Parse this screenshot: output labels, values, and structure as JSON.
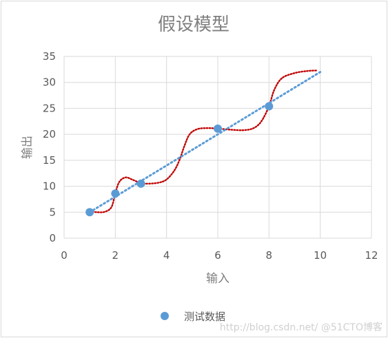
{
  "chart_data": {
    "type": "scatter",
    "title": "假设模型",
    "xlabel": "输入",
    "ylabel": "输出",
    "xlim": [
      0,
      12
    ],
    "ylim": [
      0,
      35
    ],
    "x_ticks": [
      "0",
      "2",
      "4",
      "6",
      "8",
      "10",
      "12"
    ],
    "y_ticks": [
      "0",
      "5",
      "10",
      "15",
      "20",
      "25",
      "30",
      "35"
    ],
    "grid": true,
    "legend_position": "bottom",
    "series": [
      {
        "name": "测试数据",
        "color": "#5b9bd5",
        "points": [
          {
            "x": 1,
            "y": 5
          },
          {
            "x": 2,
            "y": 8.6
          },
          {
            "x": 3,
            "y": 10.5
          },
          {
            "x": 6,
            "y": 21.1
          },
          {
            "x": 8,
            "y": 25.4
          }
        ]
      }
    ],
    "linear_fit": {
      "color": "#5b9bd5",
      "x": [
        1,
        10
      ],
      "y": [
        5,
        32
      ]
    },
    "overfit_curve": {
      "color": "#c00000",
      "points": [
        [
          1,
          5.2
        ],
        [
          1.3,
          5.0
        ],
        [
          1.6,
          5.1
        ],
        [
          1.85,
          6.0
        ],
        [
          2.0,
          8.6
        ],
        [
          2.15,
          10.8
        ],
        [
          2.4,
          11.7
        ],
        [
          2.7,
          11.2
        ],
        [
          3.0,
          10.6
        ],
        [
          3.3,
          10.5
        ],
        [
          3.7,
          10.7
        ],
        [
          4.0,
          11.3
        ],
        [
          4.3,
          13.0
        ],
        [
          4.5,
          15.0
        ],
        [
          4.7,
          17.8
        ],
        [
          4.9,
          20.0
        ],
        [
          5.2,
          21.0
        ],
        [
          5.6,
          21.2
        ],
        [
          6.0,
          21.1
        ],
        [
          6.5,
          20.9
        ],
        [
          7.0,
          20.8
        ],
        [
          7.4,
          21.2
        ],
        [
          7.7,
          22.5
        ],
        [
          8.0,
          25.4
        ],
        [
          8.2,
          28.5
        ],
        [
          8.5,
          30.8
        ],
        [
          9.0,
          31.8
        ],
        [
          9.5,
          32.2
        ],
        [
          9.9,
          32.3
        ]
      ]
    }
  },
  "watermark": "http://blog.csdn.net/ @51CTO博客"
}
